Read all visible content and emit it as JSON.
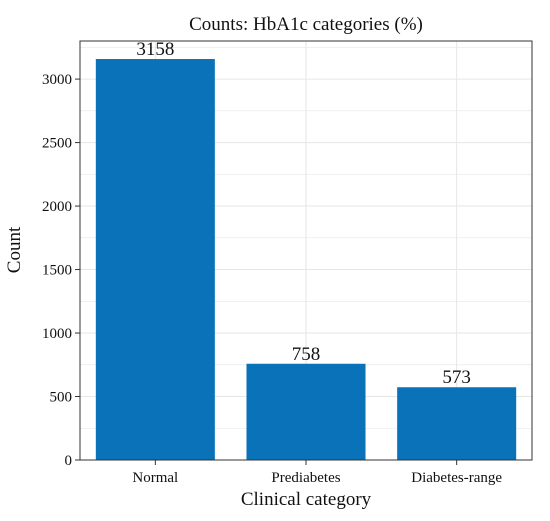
{
  "chart_data": {
    "type": "bar",
    "title": "Counts: HbA1c categories (%)",
    "xlabel": "Clinical category",
    "ylabel": "Count",
    "categories": [
      "Normal",
      "Prediabetes",
      "Diabetes-range"
    ],
    "values": [
      3158,
      758,
      573
    ],
    "data_labels": [
      "3158",
      "758",
      "573"
    ],
    "ylim": [
      0,
      3300
    ],
    "yticks": [
      0,
      500,
      1000,
      1500,
      2000,
      2500,
      3000
    ],
    "ytick_labels": [
      "0",
      "500",
      "1000",
      "1500",
      "2000",
      "2500",
      "3000"
    ],
    "grid": true,
    "legend": "none",
    "colors": {
      "bar": "#0a72b8",
      "grid": "#e6e6e6",
      "frame": "#333333",
      "text": "#111111"
    }
  }
}
